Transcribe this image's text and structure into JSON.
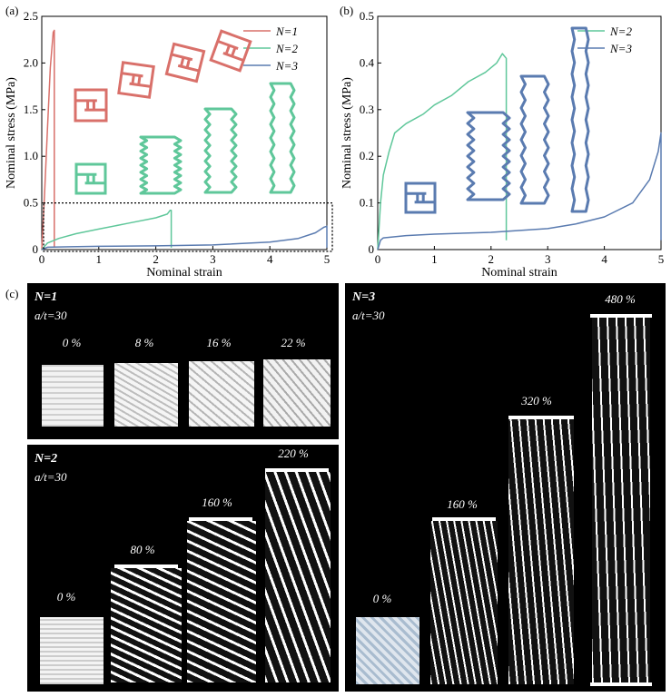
{
  "panel_labels": {
    "a": "(a)",
    "b": "(b)",
    "c": "(c)"
  },
  "chart_data": [
    {
      "type": "line",
      "xlabel": "Nominal strain",
      "ylabel": "Nominal stress (MPa)",
      "xlim": [
        0,
        5
      ],
      "ylim": [
        0,
        2.5
      ],
      "xticks": [
        "0",
        "1",
        "2",
        "3",
        "4",
        "5"
      ],
      "yticks": [
        "0",
        "0.5",
        "1.0",
        "1.5",
        "2.0",
        "2.5"
      ],
      "legend_position": "top-right",
      "series": [
        {
          "name": "N=1",
          "color": "#d9706a",
          "x": [
            0,
            0.05,
            0.1,
            0.15,
            0.2,
            0.22,
            0.22
          ],
          "y": [
            0,
            0.6,
            1.3,
            1.95,
            2.33,
            2.35,
            0.02
          ]
        },
        {
          "name": "N=2",
          "color": "#5fc79a",
          "x": [
            0,
            0.1,
            0.3,
            0.6,
            1.0,
            1.5,
            2.0,
            2.2,
            2.25,
            2.27,
            2.27
          ],
          "y": [
            0,
            0.07,
            0.12,
            0.17,
            0.22,
            0.28,
            0.34,
            0.38,
            0.42,
            0.42,
            0.02
          ]
        },
        {
          "name": "N=3",
          "color": "#5a7bb0",
          "x": [
            0,
            0.1,
            0.5,
            1.0,
            2.0,
            3.0,
            4.0,
            4.5,
            4.8,
            4.95,
            5.0,
            5.0
          ],
          "y": [
            0,
            0.025,
            0.03,
            0.035,
            0.04,
            0.05,
            0.08,
            0.12,
            0.18,
            0.24,
            0.25,
            0.02
          ]
        }
      ]
    },
    {
      "type": "line",
      "xlabel": "Nominal strain",
      "ylabel": "Nominal stress (MPa)",
      "xlim": [
        0,
        5
      ],
      "ylim": [
        0,
        0.5
      ],
      "xticks": [
        "0",
        "1",
        "2",
        "3",
        "4",
        "5"
      ],
      "yticks": [
        "0",
        "0.1",
        "0.2",
        "0.3",
        "0.4",
        "0.5"
      ],
      "legend_position": "top-right",
      "series": [
        {
          "name": "N=2",
          "color": "#5fc79a",
          "x": [
            0,
            0.05,
            0.1,
            0.2,
            0.3,
            0.5,
            0.8,
            1.0,
            1.3,
            1.6,
            1.9,
            2.1,
            2.2,
            2.27,
            2.27
          ],
          "y": [
            0,
            0.1,
            0.16,
            0.21,
            0.25,
            0.27,
            0.29,
            0.31,
            0.33,
            0.36,
            0.38,
            0.4,
            0.42,
            0.41,
            0.02
          ]
        },
        {
          "name": "N=3",
          "color": "#5a7bb0",
          "x": [
            0,
            0.05,
            0.1,
            0.5,
            1.0,
            2.0,
            3.0,
            3.5,
            4.0,
            4.5,
            4.8,
            4.95,
            5.0,
            5.0
          ],
          "y": [
            0,
            0.02,
            0.025,
            0.03,
            0.033,
            0.037,
            0.045,
            0.055,
            0.07,
            0.1,
            0.15,
            0.21,
            0.25,
            0.02
          ]
        }
      ]
    }
  ],
  "photos": {
    "n1": {
      "title": "N=1",
      "ratio": "a/t=30",
      "strains": [
        "0 %",
        "8 %",
        "16 %",
        "22 %"
      ]
    },
    "n2": {
      "title": "N=2",
      "ratio": "a/t=30",
      "strains": [
        "0 %",
        "80 %",
        "160 %",
        "220 %"
      ]
    },
    "n3": {
      "title": "N=3",
      "ratio": "a/t=30",
      "strains": [
        "0 %",
        "160 %",
        "320 %",
        "480 %"
      ]
    }
  },
  "colors": {
    "n1": "#d9706a",
    "n2": "#5fc79a",
    "n3": "#5a7bb0",
    "panel_bg": "#000000"
  }
}
